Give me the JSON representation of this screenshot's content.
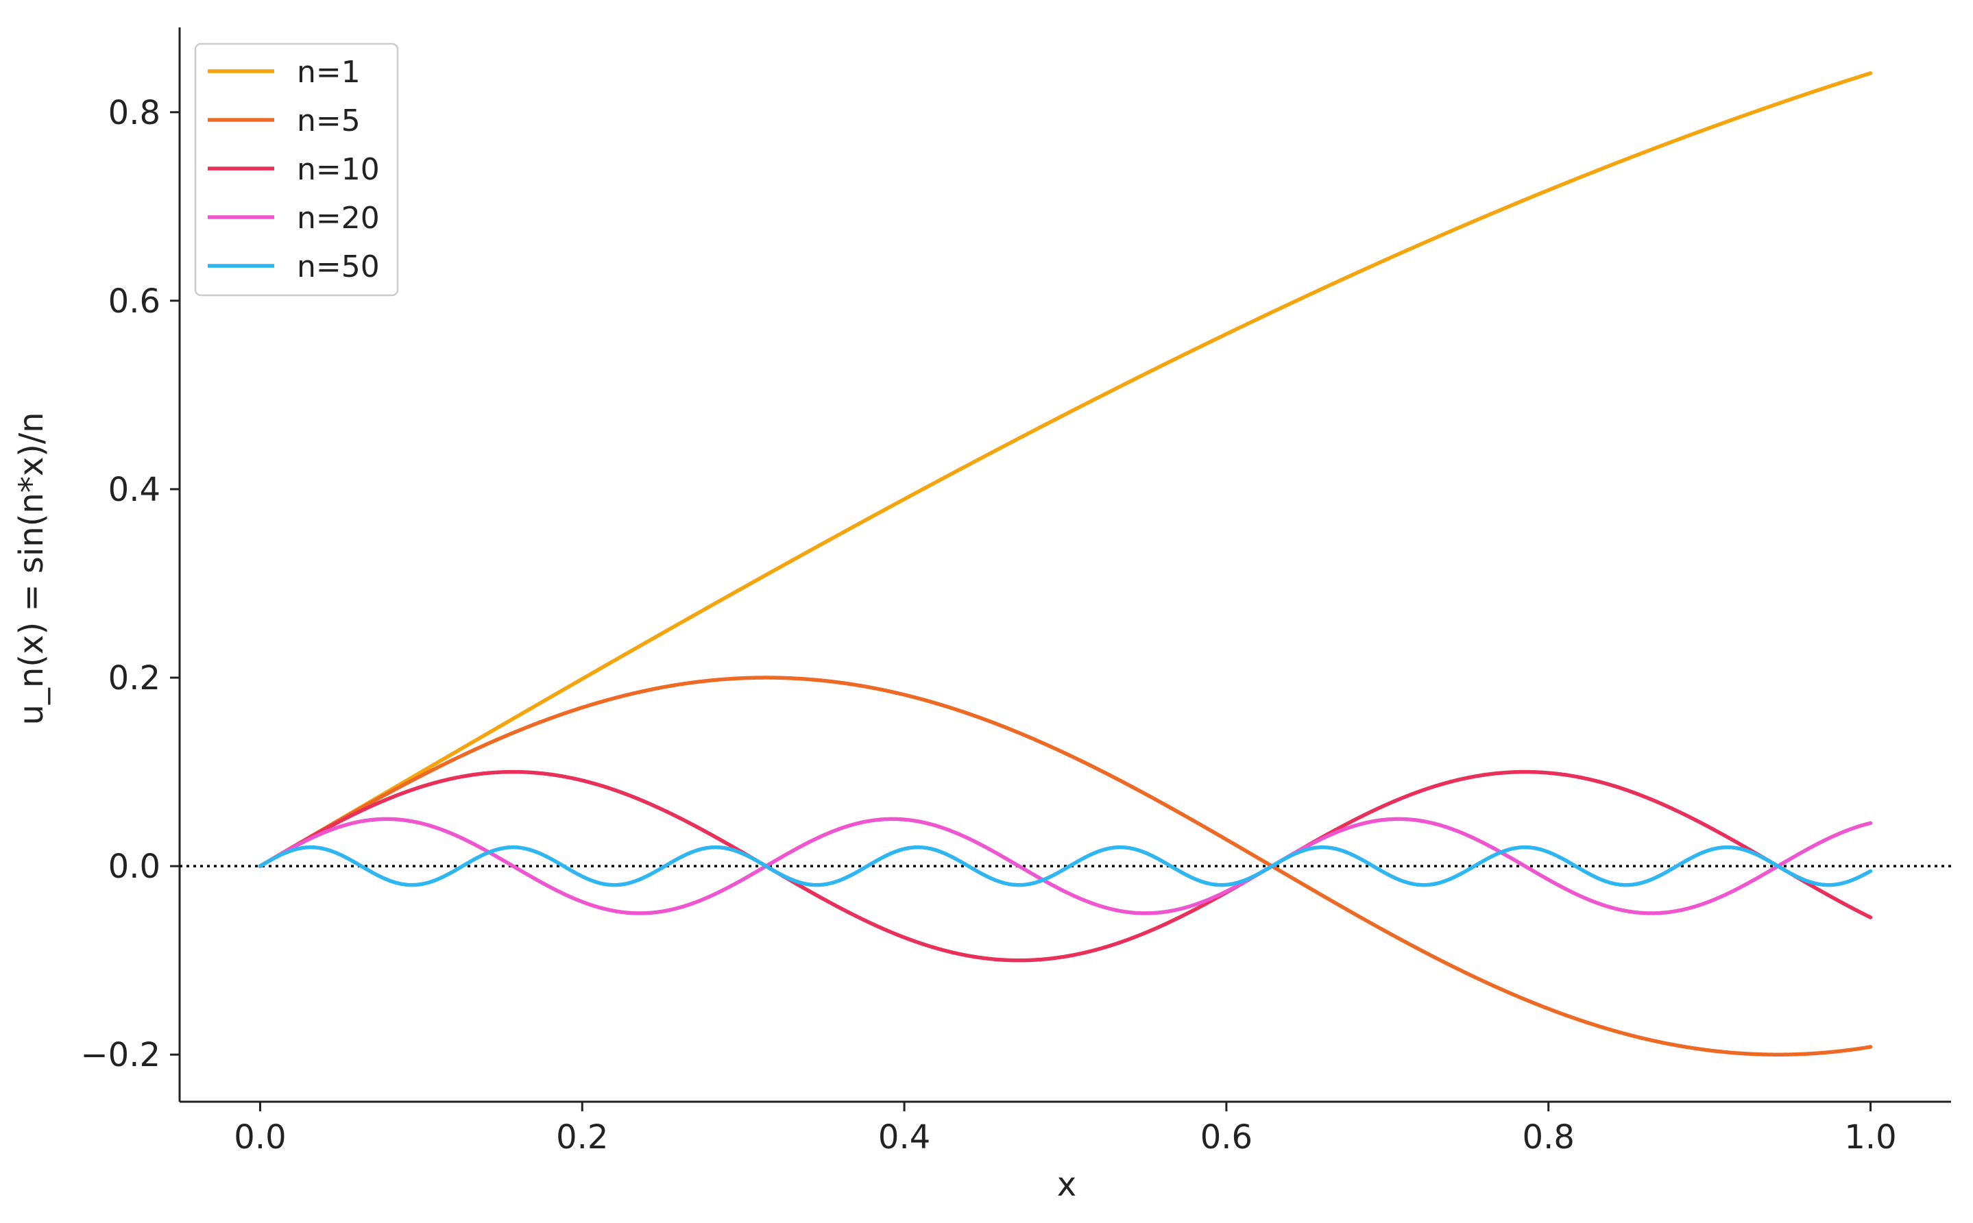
{
  "chart_data": {
    "type": "line",
    "title": "",
    "xlabel": "x",
    "ylabel": "u_n(x) = sin(n*x)/n",
    "xlim": [
      -0.05,
      1.05
    ],
    "ylim": [
      -0.25,
      0.89
    ],
    "xticks": [
      0.0,
      0.2,
      0.4,
      0.6,
      0.8,
      1.0
    ],
    "xtick_labels": [
      "0.0",
      "0.2",
      "0.4",
      "0.6",
      "0.8",
      "1.0"
    ],
    "yticks": [
      -0.2,
      0.0,
      0.2,
      0.4,
      0.6,
      0.8
    ],
    "ytick_labels": [
      "−0.2",
      "0.0",
      "0.2",
      "0.4",
      "0.6",
      "0.8"
    ],
    "grid": false,
    "legend_position": "top-left",
    "reference_line": {
      "y": 0,
      "style": "dotted",
      "color": "#000000"
    },
    "x_range": [
      0,
      1
    ],
    "series": [
      {
        "name": "n=1",
        "n": 1,
        "color": "#F5A40C",
        "function": "sin(n*x)/n"
      },
      {
        "name": "n=5",
        "n": 5,
        "color": "#EE6A24",
        "function": "sin(n*x)/n"
      },
      {
        "name": "n=10",
        "n": 10,
        "color": "#E8305A",
        "function": "sin(n*x)/n"
      },
      {
        "name": "n=20",
        "n": 20,
        "color": "#F055D0",
        "function": "sin(n*x)/n"
      },
      {
        "name": "n=50",
        "n": 50,
        "color": "#2EB6F2",
        "function": "sin(n*x)/n"
      }
    ]
  }
}
